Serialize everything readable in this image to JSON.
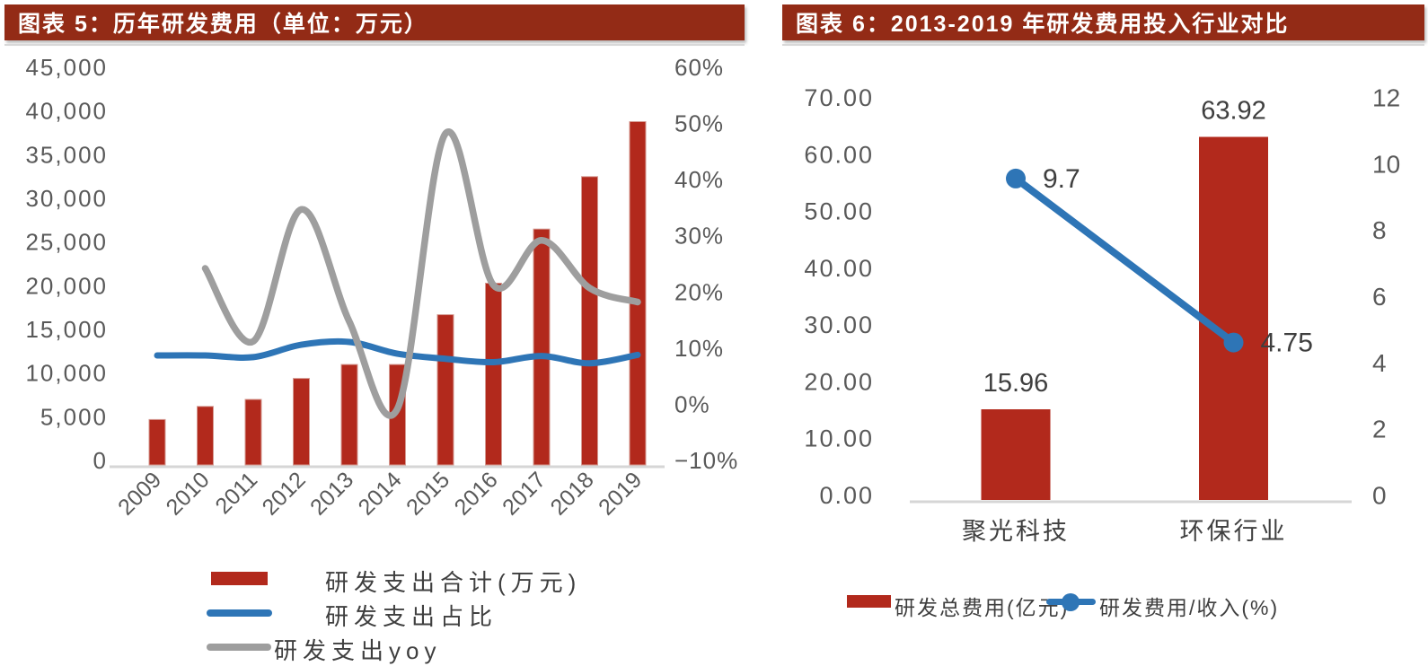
{
  "page": {
    "background": "#ffffff"
  },
  "colors": {
    "title_bar": "#932B16",
    "bar_red": "#B2291C",
    "line_blue": "#2E75B6",
    "line_gray": "#9E9E9E",
    "axis_line": "#D6D6D6",
    "tick_text": "#595959",
    "label_text": "#3F3F3F"
  },
  "panels": {
    "left": {
      "title": "图表 5：历年研发费用（单位：万元）",
      "title_bg": "#932B16",
      "legend": [
        {
          "type": "bar",
          "color": "#B2291C",
          "label": "研发支出合计(万元)"
        },
        {
          "type": "line",
          "color": "#2E75B6",
          "label": "研发支出占比"
        },
        {
          "type": "line",
          "color": "#9E9E9E",
          "label": "研发支出yoy"
        }
      ]
    },
    "right": {
      "title": "图表 6：2013-2019 年研发费用投入行业对比",
      "title_bg": "#932B16",
      "legend": [
        {
          "type": "bar",
          "color": "#B2291C",
          "label": "研发总费用(亿元)"
        },
        {
          "type": "line-marker",
          "color": "#2E75B6",
          "label": "研发费用/收入(%)"
        }
      ]
    }
  },
  "chart_data": [
    {
      "type": "bar",
      "title": "历年研发费用（单位：万元）",
      "categories": [
        "2009",
        "2010",
        "2011",
        "2012",
        "2013",
        "2014",
        "2015",
        "2016",
        "2017",
        "2018",
        "2019"
      ],
      "series": [
        {
          "name": "研发支出合计(万元)",
          "type": "bar",
          "axis": "left",
          "color": "#B2291C",
          "values": [
            5200,
            6700,
            7500,
            9900,
            11500,
            11500,
            17200,
            20800,
            27000,
            33000,
            39300
          ]
        },
        {
          "name": "研发支出占比",
          "type": "line",
          "axis": "right",
          "color": "#2E75B6",
          "unit": "%",
          "values": [
            9.5,
            9.5,
            9.2,
            11.4,
            11.9,
            9.8,
            8.9,
            8.3,
            9.4,
            8.1,
            9.6
          ]
        },
        {
          "name": "研发支出yoy",
          "type": "line",
          "axis": "right",
          "color": "#9E9E9E",
          "unit": "%",
          "values": [
            null,
            25,
            12,
            35.5,
            15.5,
            0,
            49,
            22,
            30,
            21.5,
            19
          ]
        }
      ],
      "left_axis": {
        "min": 0,
        "max": 45000,
        "tick_labels": [
          "0",
          "5,000",
          "10,000",
          "15,000",
          "20,000",
          "25,000",
          "30,000",
          "35,000",
          "40,000",
          "45,000"
        ]
      },
      "right_axis": {
        "min": -10,
        "max": 60,
        "tick_labels": [
          "−10%",
          "0%",
          "10%",
          "20%",
          "30%",
          "40%",
          "50%",
          "60%"
        ]
      },
      "grid": false,
      "smooth_lines": true,
      "legend_position": "bottom-left"
    },
    {
      "type": "bar",
      "title": "2013-2019 年研发费用投入行业对比",
      "categories": [
        "聚光科技",
        "环保行业"
      ],
      "series": [
        {
          "name": "研发总费用(亿元)",
          "type": "bar",
          "axis": "left",
          "color": "#B2291C",
          "values": [
            15.96,
            63.92
          ],
          "data_labels": [
            "15.96",
            "63.92"
          ]
        },
        {
          "name": "研发费用/收入(%)",
          "type": "line",
          "axis": "right",
          "color": "#2E75B6",
          "marker": "circle",
          "values": [
            9.7,
            4.75
          ],
          "data_labels": [
            "9.7",
            "4.75"
          ]
        }
      ],
      "left_axis": {
        "min": 0,
        "max": 70,
        "tick_labels": [
          "0.00",
          "10.00",
          "20.00",
          "30.00",
          "40.00",
          "50.00",
          "60.00",
          "70.00"
        ]
      },
      "right_axis": {
        "min": 0,
        "max": 12,
        "tick_labels": [
          "0",
          "2",
          "4",
          "6",
          "8",
          "10",
          "12"
        ]
      },
      "grid": false,
      "legend_position": "bottom"
    }
  ]
}
